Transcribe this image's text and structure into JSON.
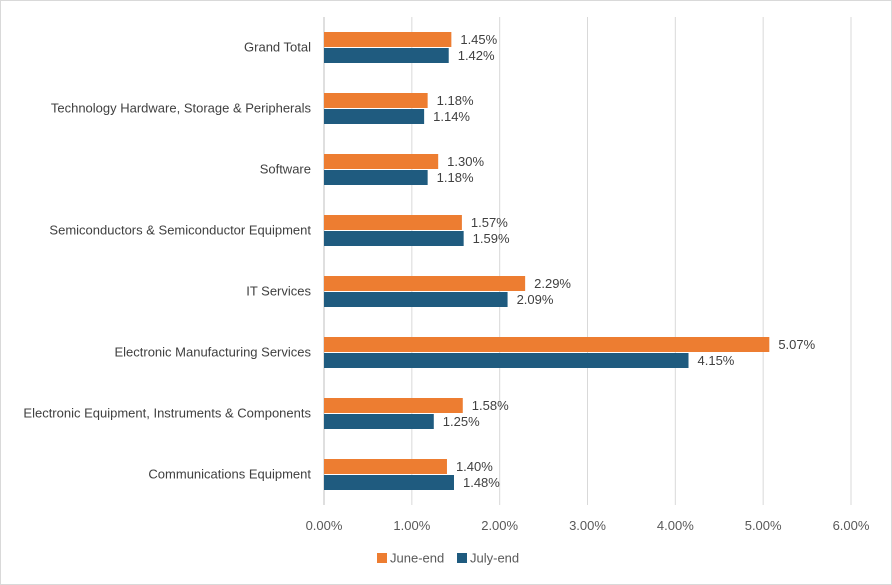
{
  "chart_data": {
    "type": "bar",
    "orientation": "horizontal",
    "title": "",
    "xlabel": "",
    "ylabel": "",
    "categories": [
      "Grand Total",
      "Technology Hardware, Storage & Peripherals",
      "Software",
      "Semiconductors & Semiconductor Equipment",
      "IT Services",
      "Electronic Manufacturing Services",
      "Electronic Equipment, Instruments & Components",
      "Communications Equipment"
    ],
    "series": [
      {
        "name": "June-end",
        "color": "#ed7d31",
        "values": [
          1.45,
          1.18,
          1.3,
          1.57,
          2.29,
          5.07,
          1.58,
          1.4
        ],
        "labels": [
          "1.45%",
          "1.18%",
          "1.30%",
          "1.57%",
          "2.29%",
          "5.07%",
          "1.58%",
          "1.40%"
        ]
      },
      {
        "name": "July-end",
        "color": "#1f5b7f",
        "values": [
          1.42,
          1.14,
          1.18,
          1.59,
          2.09,
          4.15,
          1.25,
          1.48
        ],
        "labels": [
          "1.42%",
          "1.14%",
          "1.18%",
          "1.59%",
          "2.09%",
          "4.15%",
          "1.25%",
          "1.48%"
        ]
      }
    ],
    "xlim": [
      0,
      6
    ],
    "xticks": [
      0,
      1,
      2,
      3,
      4,
      5,
      6
    ],
    "xtick_labels": [
      "0.00%",
      "1.00%",
      "2.00%",
      "3.00%",
      "4.00%",
      "5.00%",
      "6.00%"
    ],
    "grid": true,
    "legend_position": "bottom"
  }
}
